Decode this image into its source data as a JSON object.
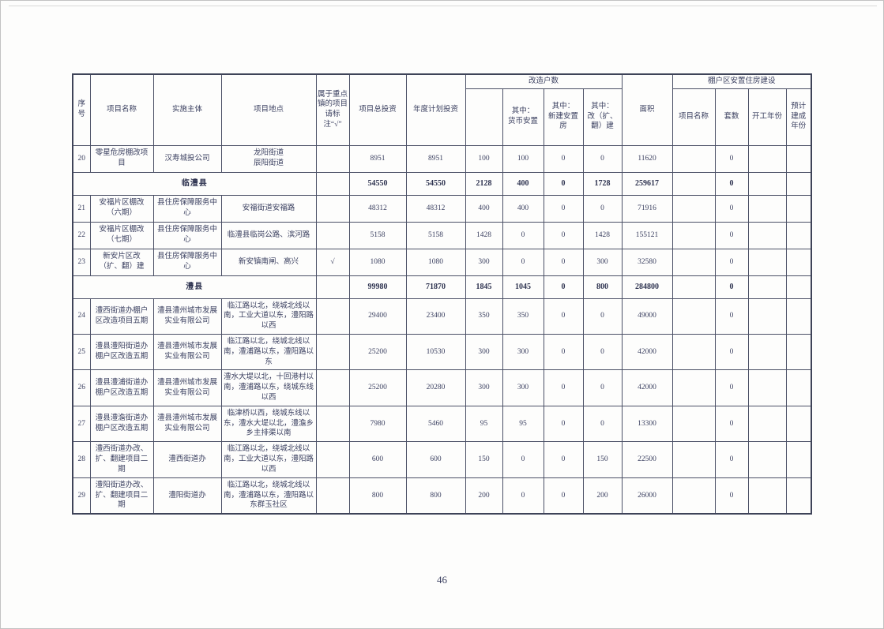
{
  "page": {
    "number": "46"
  },
  "table": {
    "header": {
      "no": "序号",
      "project_name": "项目名称",
      "entity": "实施主体",
      "location": "项目地点",
      "key_town": "属于重点镇的项目请标注“√”",
      "total_investment": "项目总投资",
      "annual_investment": "年度计划投资",
      "households_group": "改造户数",
      "households_total": "",
      "monetary": "其中：\n货币安置",
      "new_build": "其中：\n新建安置\n房",
      "rebuild": "其中：\n改（扩、\n翻）建",
      "area": "面积",
      "resettlement_group": "棚户区安置住房建设",
      "resettle_name": "项目名称",
      "units": "套数",
      "start_year": "开工年份",
      "completion_year": "预计建成\n年份"
    },
    "rows": [
      {
        "type": "data",
        "no": "20",
        "name": "零星危房棚改项目",
        "entity": "汉寿城投公司",
        "location": "龙阳街道\n辰阳街道",
        "key_town": "",
        "total_investment": "8951",
        "annual_investment": "8951",
        "households": "100",
        "monetary": "100",
        "new_build": "0",
        "rebuild": "0",
        "area": "11620",
        "resettle_name": "",
        "units": "0",
        "start_year": "",
        "completion_year": ""
      },
      {
        "type": "subtotal",
        "label": "临澧县",
        "key_town": "",
        "total_investment": "54550",
        "annual_investment": "54550",
        "households": "2128",
        "monetary": "400",
        "new_build": "0",
        "rebuild": "1728",
        "area": "259617",
        "resettle_name": "",
        "units": "0",
        "start_year": "",
        "completion_year": ""
      },
      {
        "type": "data",
        "no": "21",
        "name": "安福片区棚改（六期）",
        "entity": "县住房保障服务中心",
        "location": "安福街道安福路",
        "key_town": "",
        "total_investment": "48312",
        "annual_investment": "48312",
        "households": "400",
        "monetary": "400",
        "new_build": "0",
        "rebuild": "0",
        "area": "71916",
        "resettle_name": "",
        "units": "0",
        "start_year": "",
        "completion_year": ""
      },
      {
        "type": "data",
        "no": "22",
        "name": "安福片区棚改（七期）",
        "entity": "县住房保障服务中心",
        "location": "临澧县临岗公路、滨河路",
        "key_town": "",
        "total_investment": "5158",
        "annual_investment": "5158",
        "households": "1428",
        "monetary": "0",
        "new_build": "0",
        "rebuild": "1428",
        "area": "155121",
        "resettle_name": "",
        "units": "0",
        "start_year": "",
        "completion_year": ""
      },
      {
        "type": "data",
        "no": "23",
        "name": "新安片区改（扩、翻）建",
        "entity": "县住房保障服务中心",
        "location": "新安镇南闸、高兴",
        "key_town": "√",
        "total_investment": "1080",
        "annual_investment": "1080",
        "households": "300",
        "monetary": "0",
        "new_build": "0",
        "rebuild": "300",
        "area": "32580",
        "resettle_name": "",
        "units": "0",
        "start_year": "",
        "completion_year": ""
      },
      {
        "type": "subtotal",
        "label": "澧县",
        "key_town": "",
        "total_investment": "99980",
        "annual_investment": "71870",
        "households": "1845",
        "monetary": "1045",
        "new_build": "0",
        "rebuild": "800",
        "area": "284800",
        "resettle_name": "",
        "units": "0",
        "start_year": "",
        "completion_year": ""
      },
      {
        "type": "data",
        "no": "24",
        "name": "澧西街道办棚户区改造项目五期",
        "entity": "澧县澧州城市发展实业有限公司",
        "location": "临江路以北，绕城北线以南，工业大道以东，澧阳路以西",
        "key_town": "",
        "total_investment": "29400",
        "annual_investment": "23400",
        "households": "350",
        "monetary": "350",
        "new_build": "0",
        "rebuild": "0",
        "area": "49000",
        "resettle_name": "",
        "units": "0",
        "start_year": "",
        "completion_year": ""
      },
      {
        "type": "data",
        "no": "25",
        "name": "澧县澧阳街道办棚户区改造五期",
        "entity": "澧县澧州城市发展实业有限公司",
        "location": "临江路以北，绕城北线以南，澧浦路以东，澧阳路以东",
        "key_town": "",
        "total_investment": "25200",
        "annual_investment": "10530",
        "households": "300",
        "monetary": "300",
        "new_build": "0",
        "rebuild": "0",
        "area": "42000",
        "resettle_name": "",
        "units": "0",
        "start_year": "",
        "completion_year": ""
      },
      {
        "type": "data",
        "no": "26",
        "name": "澧县澧浦街道办棚户区改造五期",
        "entity": "澧县澧州城市发展实业有限公司",
        "location": "澧水大堤以北，十回港村以南，澧浦路以东，绕城东线以西",
        "key_town": "",
        "total_investment": "25200",
        "annual_investment": "20280",
        "households": "300",
        "monetary": "300",
        "new_build": "0",
        "rebuild": "0",
        "area": "42000",
        "resettle_name": "",
        "units": "0",
        "start_year": "",
        "completion_year": ""
      },
      {
        "type": "data",
        "no": "27",
        "name": "澧县澧澹街道办棚户区改造五期",
        "entity": "澧县澧州城市发展实业有限公司",
        "location": "临津桥以西，绕城东线以东，澧水大堤以北，澧澹乡乡主排渠以南",
        "key_town": "",
        "total_investment": "7980",
        "annual_investment": "5460",
        "households": "95",
        "monetary": "95",
        "new_build": "0",
        "rebuild": "0",
        "area": "13300",
        "resettle_name": "",
        "units": "0",
        "start_year": "",
        "completion_year": ""
      },
      {
        "type": "data",
        "no": "28",
        "name": "澧西街道办改、扩、翻建项目二期",
        "entity": "澧西街道办",
        "location": "临江路以北，绕城北线以南，工业大道以东，澧阳路以西",
        "key_town": "",
        "total_investment": "600",
        "annual_investment": "600",
        "households": "150",
        "monetary": "0",
        "new_build": "0",
        "rebuild": "150",
        "area": "22500",
        "resettle_name": "",
        "units": "0",
        "start_year": "",
        "completion_year": ""
      },
      {
        "type": "data",
        "no": "29",
        "name": "澧阳街道办改、扩、翻建项目二期",
        "entity": "澧阳街道办",
        "location": "临江路以北，绕城北线以南，澧浦路以东，澧阳路以东群玉社区",
        "key_town": "",
        "total_investment": "800",
        "annual_investment": "800",
        "households": "200",
        "monetary": "0",
        "new_build": "0",
        "rebuild": "200",
        "area": "26000",
        "resettle_name": "",
        "units": "0",
        "start_year": "",
        "completion_year": ""
      }
    ]
  }
}
